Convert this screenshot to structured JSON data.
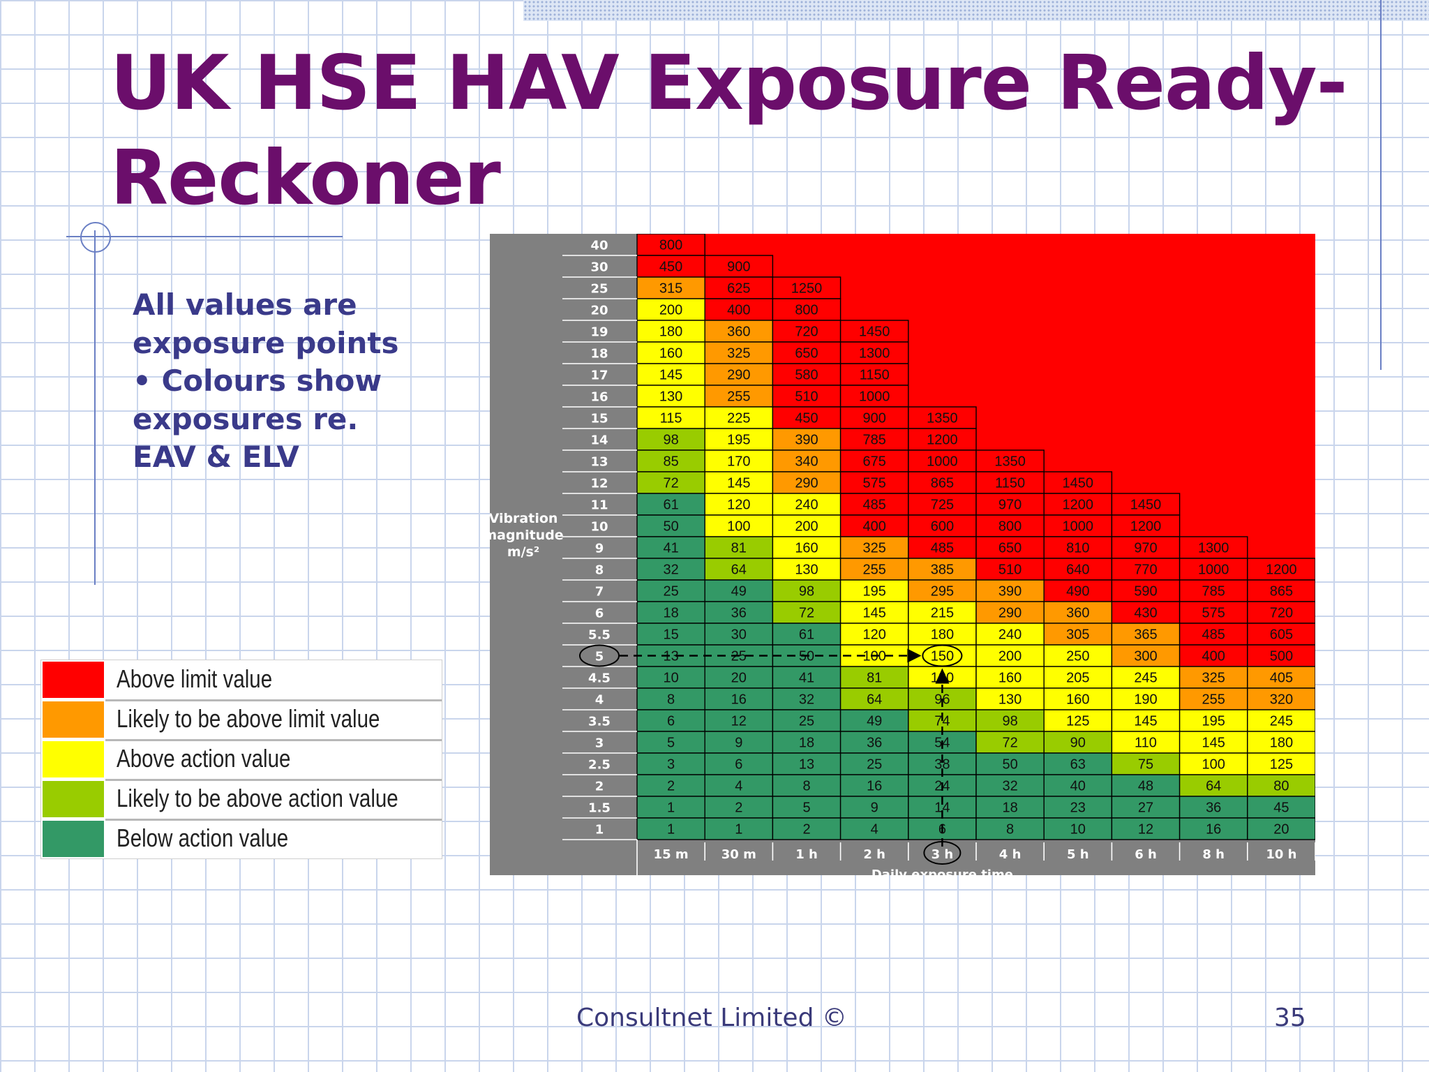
{
  "slide": {
    "title": "UK HSE HAV Exposure Ready-Reckoner",
    "note_lines": [
      "All values are",
      "exposure points",
      "• Colours show",
      "exposures re.",
      "EAV & ELV"
    ],
    "footer": "Consultnet Limited ©",
    "page_number": "35"
  },
  "legend": [
    {
      "label": "Above limit value",
      "color": "#ff0000"
    },
    {
      "label": "Likely to be above limit value",
      "color": "#ff9900"
    },
    {
      "label": "Above action value",
      "color": "#ffff00"
    },
    {
      "label": "Likely to be above action value",
      "color": "#99cc00"
    },
    {
      "label": "Below action value",
      "color": "#339966"
    }
  ],
  "chart_data": {
    "type": "table",
    "y_axis_label": [
      "Vibration",
      "magnitude",
      "m/s²"
    ],
    "x_axis_label": "Daily exposure time",
    "magnitudes": [
      "40",
      "30",
      "25",
      "20",
      "19",
      "18",
      "17",
      "16",
      "15",
      "14",
      "13",
      "12",
      "11",
      "10",
      "9",
      "8",
      "7",
      "6",
      "5.5",
      "5",
      "4.5",
      "4",
      "3.5",
      "3",
      "2.5",
      "2",
      "1.5",
      "1"
    ],
    "times": [
      "15 m",
      "30 m",
      "1 h",
      "2 h",
      "3 h",
      "4 h",
      "5 h",
      "6 h",
      "8 h",
      "10 h"
    ],
    "cells": [
      [
        [
          "800",
          "r"
        ]
      ],
      [
        [
          "450",
          "r"
        ],
        [
          "900",
          "r"
        ]
      ],
      [
        [
          "315",
          "o"
        ],
        [
          "625",
          "r"
        ],
        [
          "1250",
          "r"
        ]
      ],
      [
        [
          "200",
          "y"
        ],
        [
          "400",
          "r"
        ],
        [
          "800",
          "r"
        ]
      ],
      [
        [
          "180",
          "y"
        ],
        [
          "360",
          "o"
        ],
        [
          "720",
          "r"
        ],
        [
          "1450",
          "r"
        ]
      ],
      [
        [
          "160",
          "y"
        ],
        [
          "325",
          "o"
        ],
        [
          "650",
          "r"
        ],
        [
          "1300",
          "r"
        ]
      ],
      [
        [
          "145",
          "y"
        ],
        [
          "290",
          "o"
        ],
        [
          "580",
          "r"
        ],
        [
          "1150",
          "r"
        ]
      ],
      [
        [
          "130",
          "y"
        ],
        [
          "255",
          "o"
        ],
        [
          "510",
          "r"
        ],
        [
          "1000",
          "r"
        ]
      ],
      [
        [
          "115",
          "y"
        ],
        [
          "225",
          "y"
        ],
        [
          "450",
          "r"
        ],
        [
          "900",
          "r"
        ],
        [
          "1350",
          "r"
        ]
      ],
      [
        [
          "98",
          "l"
        ],
        [
          "195",
          "y"
        ],
        [
          "390",
          "o"
        ],
        [
          "785",
          "r"
        ],
        [
          "1200",
          "r"
        ]
      ],
      [
        [
          "85",
          "l"
        ],
        [
          "170",
          "y"
        ],
        [
          "340",
          "o"
        ],
        [
          "675",
          "r"
        ],
        [
          "1000",
          "r"
        ],
        [
          "1350",
          "r"
        ]
      ],
      [
        [
          "72",
          "l"
        ],
        [
          "145",
          "y"
        ],
        [
          "290",
          "o"
        ],
        [
          "575",
          "r"
        ],
        [
          "865",
          "r"
        ],
        [
          "1150",
          "r"
        ],
        [
          "1450",
          "r"
        ]
      ],
      [
        [
          "61",
          "g"
        ],
        [
          "120",
          "y"
        ],
        [
          "240",
          "y"
        ],
        [
          "485",
          "r"
        ],
        [
          "725",
          "r"
        ],
        [
          "970",
          "r"
        ],
        [
          "1200",
          "r"
        ],
        [
          "1450",
          "r"
        ]
      ],
      [
        [
          "50",
          "g"
        ],
        [
          "100",
          "y"
        ],
        [
          "200",
          "y"
        ],
        [
          "400",
          "r"
        ],
        [
          "600",
          "r"
        ],
        [
          "800",
          "r"
        ],
        [
          "1000",
          "r"
        ],
        [
          "1200",
          "r"
        ]
      ],
      [
        [
          "41",
          "g"
        ],
        [
          "81",
          "l"
        ],
        [
          "160",
          "y"
        ],
        [
          "325",
          "o"
        ],
        [
          "485",
          "r"
        ],
        [
          "650",
          "r"
        ],
        [
          "810",
          "r"
        ],
        [
          "970",
          "r"
        ],
        [
          "1300",
          "r"
        ]
      ],
      [
        [
          "32",
          "g"
        ],
        [
          "64",
          "l"
        ],
        [
          "130",
          "y"
        ],
        [
          "255",
          "o"
        ],
        [
          "385",
          "o"
        ],
        [
          "510",
          "r"
        ],
        [
          "640",
          "r"
        ],
        [
          "770",
          "r"
        ],
        [
          "1000",
          "r"
        ],
        [
          "1200",
          "r"
        ]
      ],
      [
        [
          "25",
          "g"
        ],
        [
          "49",
          "g"
        ],
        [
          "98",
          "l"
        ],
        [
          "195",
          "y"
        ],
        [
          "295",
          "o"
        ],
        [
          "390",
          "o"
        ],
        [
          "490",
          "r"
        ],
        [
          "590",
          "r"
        ],
        [
          "785",
          "r"
        ],
        [
          "865",
          "r"
        ]
      ],
      [
        [
          "18",
          "g"
        ],
        [
          "36",
          "g"
        ],
        [
          "72",
          "l"
        ],
        [
          "145",
          "y"
        ],
        [
          "215",
          "y"
        ],
        [
          "290",
          "o"
        ],
        [
          "360",
          "o"
        ],
        [
          "430",
          "r"
        ],
        [
          "575",
          "r"
        ],
        [
          "720",
          "r"
        ]
      ],
      [
        [
          "15",
          "g"
        ],
        [
          "30",
          "g"
        ],
        [
          "61",
          "g"
        ],
        [
          "120",
          "y"
        ],
        [
          "180",
          "y"
        ],
        [
          "240",
          "y"
        ],
        [
          "305",
          "o"
        ],
        [
          "365",
          "o"
        ],
        [
          "485",
          "r"
        ],
        [
          "605",
          "r"
        ]
      ],
      [
        [
          "13",
          "g"
        ],
        [
          "25",
          "g"
        ],
        [
          "50",
          "g"
        ],
        [
          "100",
          "y"
        ],
        [
          "150",
          "y"
        ],
        [
          "200",
          "y"
        ],
        [
          "250",
          "y"
        ],
        [
          "300",
          "o"
        ],
        [
          "400",
          "r"
        ],
        [
          "500",
          "r"
        ]
      ],
      [
        [
          "10",
          "g"
        ],
        [
          "20",
          "g"
        ],
        [
          "41",
          "g"
        ],
        [
          "81",
          "l"
        ],
        [
          "120",
          "y"
        ],
        [
          "160",
          "y"
        ],
        [
          "205",
          "y"
        ],
        [
          "245",
          "y"
        ],
        [
          "325",
          "o"
        ],
        [
          "405",
          "o"
        ]
      ],
      [
        [
          "8",
          "g"
        ],
        [
          "16",
          "g"
        ],
        [
          "32",
          "g"
        ],
        [
          "64",
          "l"
        ],
        [
          "96",
          "l"
        ],
        [
          "130",
          "y"
        ],
        [
          "160",
          "y"
        ],
        [
          "190",
          "y"
        ],
        [
          "255",
          "o"
        ],
        [
          "320",
          "o"
        ]
      ],
      [
        [
          "6",
          "g"
        ],
        [
          "12",
          "g"
        ],
        [
          "25",
          "g"
        ],
        [
          "49",
          "g"
        ],
        [
          "74",
          "l"
        ],
        [
          "98",
          "l"
        ],
        [
          "125",
          "y"
        ],
        [
          "145",
          "y"
        ],
        [
          "195",
          "y"
        ],
        [
          "245",
          "y"
        ]
      ],
      [
        [
          "5",
          "g"
        ],
        [
          "9",
          "g"
        ],
        [
          "18",
          "g"
        ],
        [
          "36",
          "g"
        ],
        [
          "54",
          "g"
        ],
        [
          "72",
          "l"
        ],
        [
          "90",
          "l"
        ],
        [
          "110",
          "y"
        ],
        [
          "145",
          "y"
        ],
        [
          "180",
          "y"
        ]
      ],
      [
        [
          "3",
          "g"
        ],
        [
          "6",
          "g"
        ],
        [
          "13",
          "g"
        ],
        [
          "25",
          "g"
        ],
        [
          "38",
          "g"
        ],
        [
          "50",
          "g"
        ],
        [
          "63",
          "g"
        ],
        [
          "75",
          "l"
        ],
        [
          "100",
          "y"
        ],
        [
          "125",
          "y"
        ]
      ],
      [
        [
          "2",
          "g"
        ],
        [
          "4",
          "g"
        ],
        [
          "8",
          "g"
        ],
        [
          "16",
          "g"
        ],
        [
          "24",
          "g"
        ],
        [
          "32",
          "g"
        ],
        [
          "40",
          "g"
        ],
        [
          "48",
          "g"
        ],
        [
          "64",
          "l"
        ],
        [
          "80",
          "l"
        ]
      ],
      [
        [
          "1",
          "g"
        ],
        [
          "2",
          "g"
        ],
        [
          "5",
          "g"
        ],
        [
          "9",
          "g"
        ],
        [
          "14",
          "g"
        ],
        [
          "18",
          "g"
        ],
        [
          "23",
          "g"
        ],
        [
          "27",
          "g"
        ],
        [
          "36",
          "g"
        ],
        [
          "45",
          "g"
        ]
      ],
      [
        [
          "1",
          "g"
        ],
        [
          "1",
          "g"
        ],
        [
          "2",
          "g"
        ],
        [
          "4",
          "g"
        ],
        [
          "6",
          "g"
        ],
        [
          "8",
          "g"
        ],
        [
          "10",
          "g"
        ],
        [
          "12",
          "g"
        ],
        [
          "16",
          "g"
        ],
        [
          "20",
          "g"
        ]
      ]
    ],
    "color_codes": {
      "r": "#ff0000",
      "o": "#ff9900",
      "y": "#ffff00",
      "l": "#99cc00",
      "g": "#339966"
    },
    "highlight": {
      "magnitude": "5",
      "time": "3 h",
      "value": "150"
    }
  }
}
